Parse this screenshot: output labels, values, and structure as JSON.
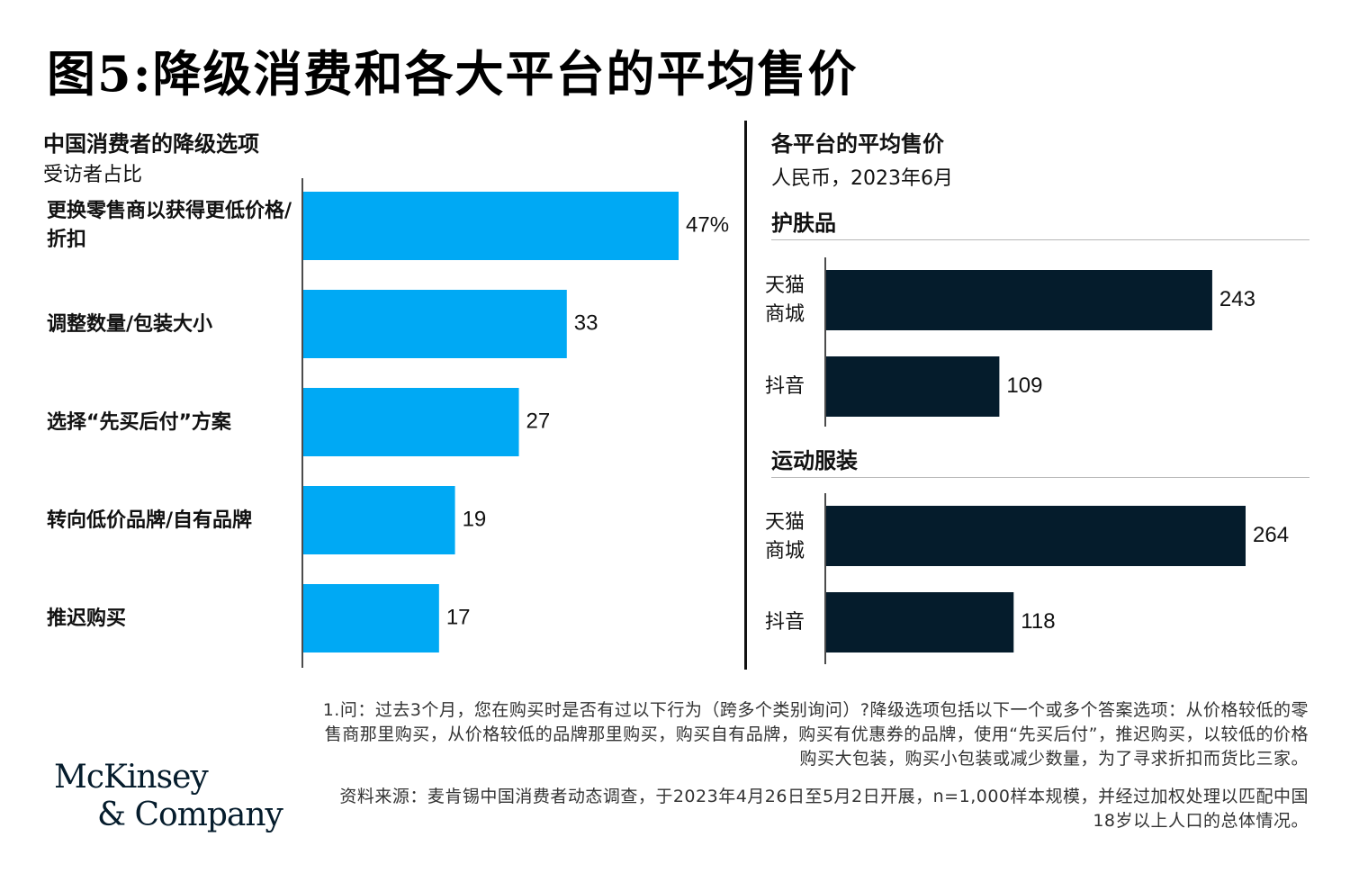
{
  "title": "图5:降级消费和各大平台的平均售价",
  "chart_data": [
    {
      "type": "bar",
      "orientation": "horizontal",
      "title": "中国消费者的降级选项",
      "subtitle": "受访者占比",
      "categories": [
        "更换零售商以获得更低价格/折扣",
        "调整数量/包装大小",
        "选择“先买后付”方案",
        "转向低价品牌/自有品牌",
        "推迟购买"
      ],
      "values": [
        47,
        33,
        27,
        19,
        17
      ],
      "value_labels": [
        "47%",
        "33",
        "27",
        "19",
        "17"
      ],
      "color": "#00a9f4",
      "xlim": [
        0,
        50
      ]
    },
    {
      "type": "bar",
      "orientation": "horizontal",
      "title": "各平台的平均售价",
      "subtitle": "人民币，2023年6月",
      "color": "#051c2c",
      "xlim": [
        0,
        280
      ],
      "groups": [
        {
          "name": "护肤品",
          "categories": [
            "天猫商城",
            "抖音"
          ],
          "values": [
            243,
            109
          ],
          "value_labels": [
            "243",
            "109"
          ]
        },
        {
          "name": "运动服装",
          "categories": [
            "天猫商城",
            "抖音"
          ],
          "values": [
            264,
            118
          ],
          "value_labels": [
            "264",
            "118"
          ]
        }
      ]
    }
  ],
  "footnote": "1.问：过去3个月，您在购买时是否有过以下行为（跨多个类别询问）?降级选项包括以下一个或多个答案选项：从价格较低的零售商那里购买，从价格较低的品牌那里购买，购买自有品牌，购买有优惠券的品牌，使用“先买后付”，推迟购买，以较低的价格购买大包装，购买小包装或减少数量，为了寻求折扣而货比三家。",
  "source": "资料来源：麦肯锡中国消费者动态调查，于2023年4月26日至5月2日开展，n=1,000样本规模，并经过加权处理以匹配中国18岁以上人口的总体情况。",
  "logo": {
    "line1": "McKinsey",
    "line2": "& Company"
  }
}
